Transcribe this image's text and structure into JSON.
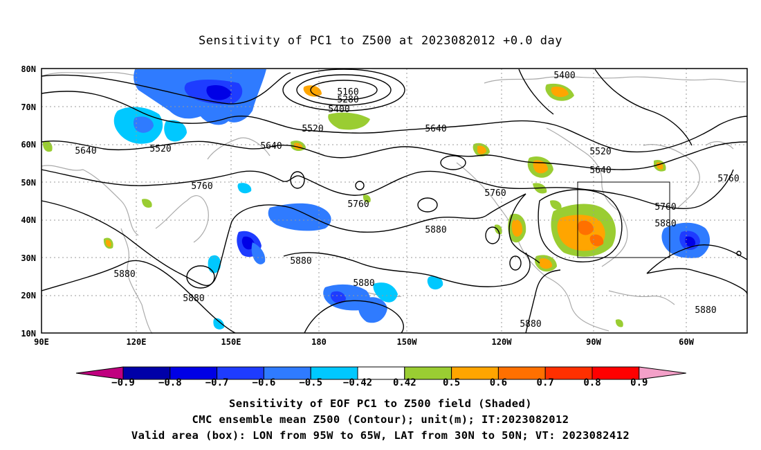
{
  "title": "Sensitivity of PC1 to Z500 at 2023082012 +0.0 day",
  "axes": {
    "lat_labels": [
      "80N",
      "70N",
      "60N",
      "50N",
      "40N",
      "30N",
      "20N",
      "10N"
    ],
    "lon_labels": [
      "90E",
      "120E",
      "150E",
      "180",
      "150W",
      "120W",
      "90W",
      "60W"
    ]
  },
  "contour_labels": [
    "5160",
    "5280",
    "5400",
    "5520",
    "5640",
    "5760",
    "5880",
    "5400",
    "5520",
    "5640",
    "5640",
    "5520",
    "5640",
    "5760",
    "5760",
    "5760",
    "5760",
    "5880",
    "5880",
    "5880",
    "5880",
    "5880",
    "5880",
    "5880"
  ],
  "colorbar": {
    "labels": [
      "−0.9",
      "−0.8",
      "−0.7",
      "−0.6",
      "−0.5",
      "−0.42",
      "0.42",
      "0.5",
      "0.6",
      "0.7",
      "0.8",
      "0.9"
    ],
    "colors": [
      "#c0007f",
      "#0000a8",
      "#0000e6",
      "#1e3cff",
      "#2f7bff",
      "#00c8ff",
      "#ffffff",
      "#9acd32",
      "#ffa500",
      "#ff7000",
      "#ff3000",
      "#ff0000",
      "#f3a0c8"
    ]
  },
  "valid_box": {
    "lon_west": "95W",
    "lon_east": "65W",
    "lat_south": "30N",
    "lat_north": "50N"
  },
  "caption": {
    "line1": "Sensitivity of EOF PC1 to Z500 field (Shaded)",
    "line2": "CMC ensemble mean Z500 (Contour); unit(m); IT:2023082012",
    "line3": "Valid area (box): LON from 95W to 65W, LAT from 30N to 50N; VT: 2023082412"
  }
}
